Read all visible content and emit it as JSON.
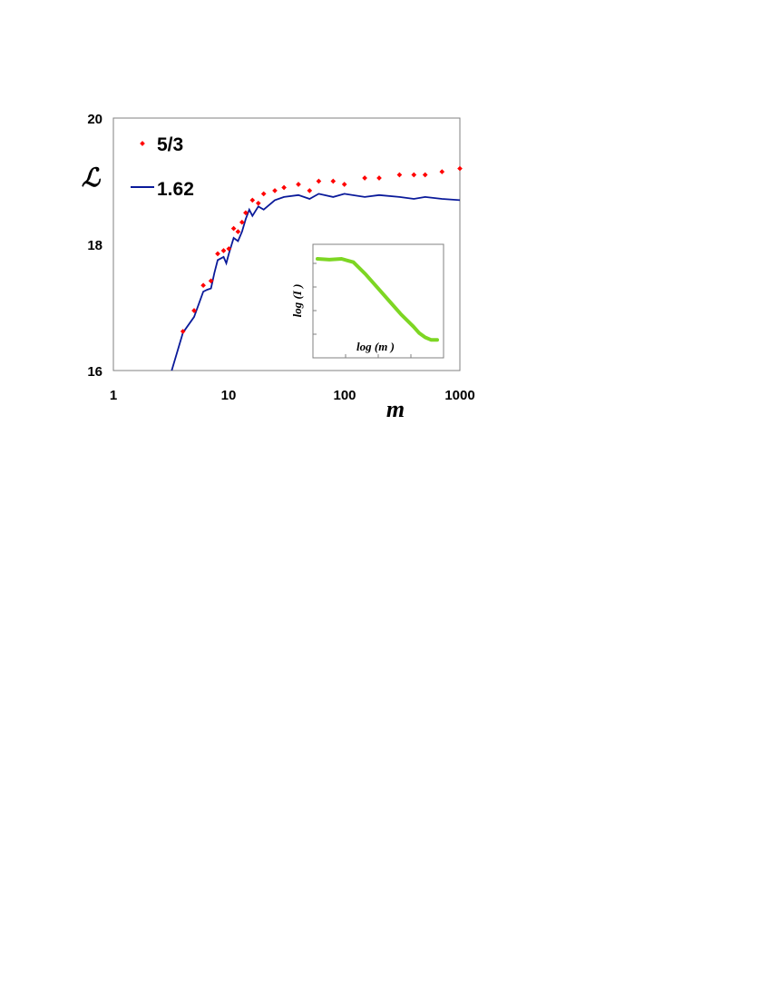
{
  "chart_data": [
    {
      "type": "scatter",
      "title": "",
      "xlabel": "m",
      "ylabel": "ℒ",
      "xscale": "log",
      "xlim": [
        1,
        1000
      ],
      "ylim": [
        16,
        20
      ],
      "xticks": [
        "1",
        "10",
        "100",
        "1000"
      ],
      "yticks": [
        "16",
        "18",
        "20"
      ],
      "grid": false,
      "legend": "top-left",
      "series": [
        {
          "name": "5/3",
          "style": "markers",
          "color": "#ff0000",
          "x": [
            4,
            5,
            6,
            7,
            8,
            9,
            10,
            11,
            12,
            13,
            14,
            16,
            18,
            20,
            25,
            30,
            40,
            50,
            60,
            80,
            100,
            150,
            200,
            300,
            400,
            500,
            700,
            1000
          ],
          "y": [
            16.62,
            16.95,
            17.35,
            17.42,
            17.85,
            17.9,
            17.93,
            18.25,
            18.2,
            18.35,
            18.5,
            18.7,
            18.65,
            18.8,
            18.85,
            18.9,
            18.95,
            18.85,
            19.0,
            19.0,
            18.95,
            19.05,
            19.05,
            19.1,
            19.1,
            19.1,
            19.15,
            19.2
          ]
        },
        {
          "name": "1.62",
          "style": "line",
          "color": "#0a1a9a",
          "x": [
            3.2,
            4,
            5,
            6,
            6.5,
            7,
            7.5,
            8,
            9,
            9.5,
            10,
            11,
            12,
            13,
            14,
            15,
            16,
            18,
            20,
            25,
            30,
            40,
            50,
            60,
            80,
            100,
            150,
            200,
            300,
            400,
            500,
            700,
            1000
          ],
          "y": [
            16.0,
            16.6,
            16.85,
            17.25,
            17.28,
            17.3,
            17.55,
            17.75,
            17.8,
            17.7,
            17.85,
            18.1,
            18.05,
            18.2,
            18.4,
            18.55,
            18.45,
            18.6,
            18.55,
            18.7,
            18.75,
            18.78,
            18.72,
            18.8,
            18.75,
            18.8,
            18.75,
            18.78,
            18.75,
            18.72,
            18.75,
            18.72,
            18.7
          ]
        }
      ]
    },
    {
      "type": "line",
      "title": "",
      "xlabel": "log (m )",
      "ylabel": "log (I )",
      "grid": false,
      "series": [
        {
          "color": "#7dd623",
          "x": [
            0.0,
            0.1,
            0.2,
            0.3,
            0.4,
            0.5,
            0.6,
            0.7,
            0.8,
            0.85,
            0.9,
            0.95,
            1.0
          ],
          "y": [
            1.0,
            0.99,
            1.0,
            0.96,
            0.82,
            0.66,
            0.5,
            0.34,
            0.2,
            0.12,
            0.07,
            0.04,
            0.04
          ]
        }
      ]
    }
  ]
}
